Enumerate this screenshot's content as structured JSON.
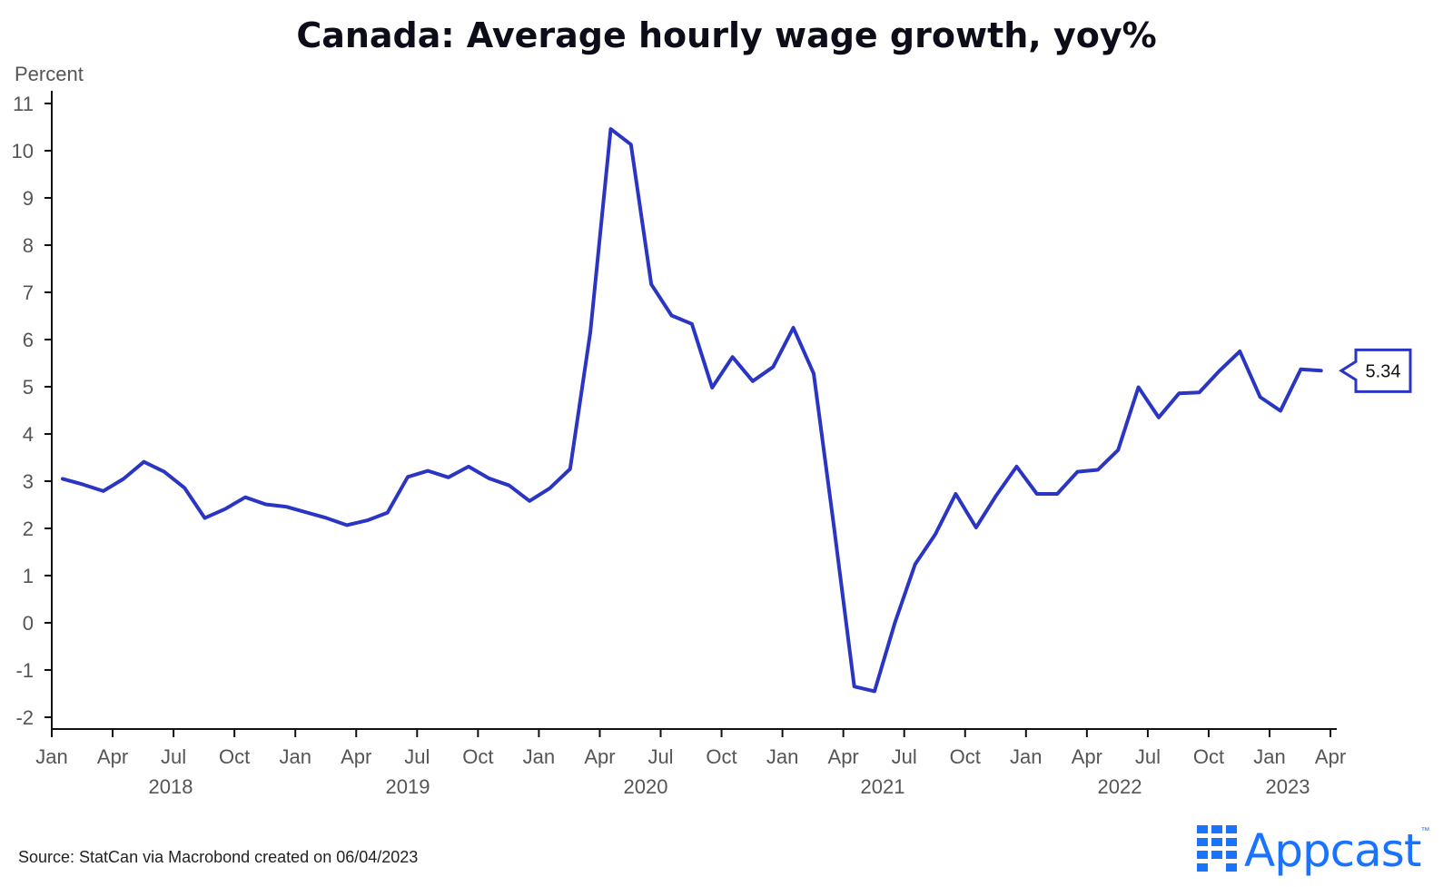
{
  "chart_data": {
    "type": "line",
    "title": "Canada: Average hourly wage growth, yoy%",
    "ylabel": "Percent",
    "ylim": [
      -2.2,
      11.2
    ],
    "yticks": [
      "11",
      "10",
      "9",
      "8",
      "7",
      "6",
      "5",
      "4",
      "3",
      "2",
      "1",
      "0",
      "-1",
      "-2"
    ],
    "ytick_values": [
      11,
      10,
      9,
      8,
      7,
      6,
      5,
      4,
      3,
      2,
      1,
      0,
      -1,
      -2
    ],
    "x_start": "2018-01",
    "month_ticks": [
      "Jan",
      "Apr",
      "Jul",
      "Oct",
      "Jan",
      "Apr",
      "Jul",
      "Oct",
      "Jan",
      "Apr",
      "Jul",
      "Oct",
      "Jan",
      "Apr",
      "Jul",
      "Oct",
      "Jan",
      "Apr",
      "Jul",
      "Oct",
      "Jan",
      "Apr"
    ],
    "year_labels": [
      "2018",
      "2019",
      "2020",
      "2021",
      "2022",
      "2023"
    ],
    "series": [
      {
        "color": "#2b35c4",
        "values": [
          3.05,
          2.93,
          2.79,
          3.05,
          3.41,
          3.2,
          2.86,
          2.22,
          2.41,
          2.66,
          2.51,
          2.46,
          2.34,
          2.22,
          2.07,
          2.17,
          2.33,
          3.09,
          3.22,
          3.08,
          3.31,
          3.06,
          2.91,
          2.58,
          2.85,
          3.26,
          6.16,
          10.46,
          10.13,
          7.17,
          6.51,
          6.33,
          4.98,
          5.63,
          5.12,
          5.42,
          6.25,
          5.28,
          2.04,
          -1.35,
          -1.45,
          0.0,
          1.24,
          1.88,
          2.73,
          2.02,
          2.7,
          3.31,
          2.73,
          2.73,
          3.2,
          3.24,
          3.66,
          4.99,
          4.35,
          4.86,
          4.88,
          5.34,
          5.75,
          4.78,
          4.49,
          5.37,
          5.34
        ]
      }
    ],
    "last_value_label": "5.34",
    "source": "Source: StatCan via Macrobond created on 06/04/2023"
  },
  "logo": {
    "text": "Appcast",
    "tm": "™"
  },
  "colors": {
    "line": "#2b35c4",
    "axis": "#111111",
    "logo": "#1a73ff"
  }
}
